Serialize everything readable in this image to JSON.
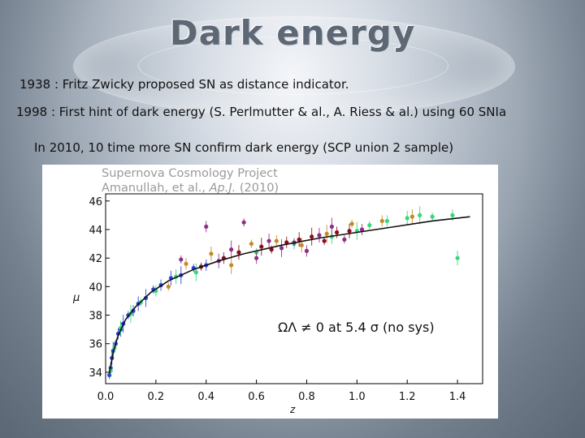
{
  "slide": {
    "title": "Dark energy",
    "lines": [
      "1938 : Fritz Zwicky proposed SN as distance indicator.",
      "1998 : First hint of dark energy (S. Perlmutter & al., A. Riess & al.) using 60 SNIa",
      "In 2010, 10 time more SN confirm dark energy (SCP union 2 sample)"
    ]
  },
  "chart_data": {
    "type": "scatter",
    "title": "Supernova Cosmology Project",
    "subtitle_plain": "Amanullah, et al., ",
    "subtitle_italic": "Ap.J.",
    "subtitle_tail": " (2010)",
    "xlabel": "z",
    "ylabel": "μ",
    "xlim": [
      0.0,
      1.5
    ],
    "ylim": [
      33.2,
      46.5
    ],
    "xticks": [
      "0.0",
      "0.2",
      "0.4",
      "0.6",
      "0.8",
      "1.0",
      "1.2",
      "1.4"
    ],
    "yticks": [
      "34",
      "36",
      "38",
      "40",
      "42",
      "44",
      "46"
    ],
    "annotation": "ΩΛ ≠ 0 at 5.4 σ (no sys)",
    "colors": {
      "fit": "#111111",
      "blue": "#2b3fd6",
      "green": "#33d97a",
      "purple": "#8e2d88",
      "orange": "#c48a2a",
      "red": "#8b0c1c"
    },
    "fit_curve": {
      "name": "",
      "x": [
        0.015,
        0.03,
        0.05,
        0.08,
        0.12,
        0.18,
        0.25,
        0.35,
        0.45,
        0.55,
        0.7,
        0.85,
        1.0,
        1.15,
        1.3,
        1.45
      ],
      "y": [
        33.9,
        35.4,
        36.6,
        37.7,
        38.6,
        39.6,
        40.4,
        41.2,
        41.8,
        42.3,
        42.9,
        43.4,
        43.8,
        44.2,
        44.6,
        44.9
      ]
    },
    "series": [
      {
        "color": "blue",
        "x": [
          0.015,
          0.02,
          0.025,
          0.03,
          0.04,
          0.05,
          0.06,
          0.07,
          0.09,
          0.11,
          0.13,
          0.16,
          0.19,
          0.22,
          0.26,
          0.3,
          0.35,
          0.4
        ],
        "y": [
          33.8,
          34.3,
          35.0,
          35.5,
          36.0,
          36.7,
          37.0,
          37.4,
          38.0,
          38.3,
          38.8,
          39.2,
          39.8,
          40.1,
          40.6,
          40.8,
          41.3,
          41.5
        ]
      },
      {
        "color": "green",
        "x": [
          0.02,
          0.035,
          0.06,
          0.1,
          0.14,
          0.2,
          0.28,
          0.36,
          0.6,
          0.75,
          0.9,
          1.0,
          1.05,
          1.12,
          1.2,
          1.25,
          1.3,
          1.38,
          1.4
        ],
        "y": [
          34.1,
          35.7,
          37.1,
          38.1,
          38.9,
          39.7,
          40.7,
          41.0,
          42.4,
          43.0,
          43.5,
          43.9,
          44.3,
          44.6,
          44.8,
          45.0,
          44.9,
          45.0,
          42.0
        ]
      },
      {
        "color": "purple",
        "x": [
          0.3,
          0.4,
          0.45,
          0.5,
          0.55,
          0.6,
          0.65,
          0.7,
          0.75,
          0.8,
          0.85,
          0.9,
          0.95,
          1.02
        ],
        "y": [
          41.9,
          44.2,
          41.8,
          42.6,
          44.5,
          42.0,
          43.2,
          42.7,
          43.1,
          42.5,
          43.6,
          44.2,
          43.3,
          44.0
        ]
      },
      {
        "color": "orange",
        "x": [
          0.25,
          0.32,
          0.42,
          0.5,
          0.58,
          0.68,
          0.78,
          0.88,
          0.98,
          1.1,
          1.22
        ],
        "y": [
          40.0,
          41.6,
          42.3,
          41.5,
          43.0,
          43.2,
          42.9,
          43.7,
          44.4,
          44.6,
          44.9
        ]
      },
      {
        "color": "red",
        "x": [
          0.38,
          0.47,
          0.53,
          0.62,
          0.66,
          0.72,
          0.77,
          0.82,
          0.87,
          0.92,
          0.97
        ],
        "y": [
          41.4,
          42.0,
          42.4,
          42.8,
          42.6,
          43.1,
          43.3,
          43.5,
          43.2,
          43.8,
          43.9
        ]
      }
    ]
  }
}
